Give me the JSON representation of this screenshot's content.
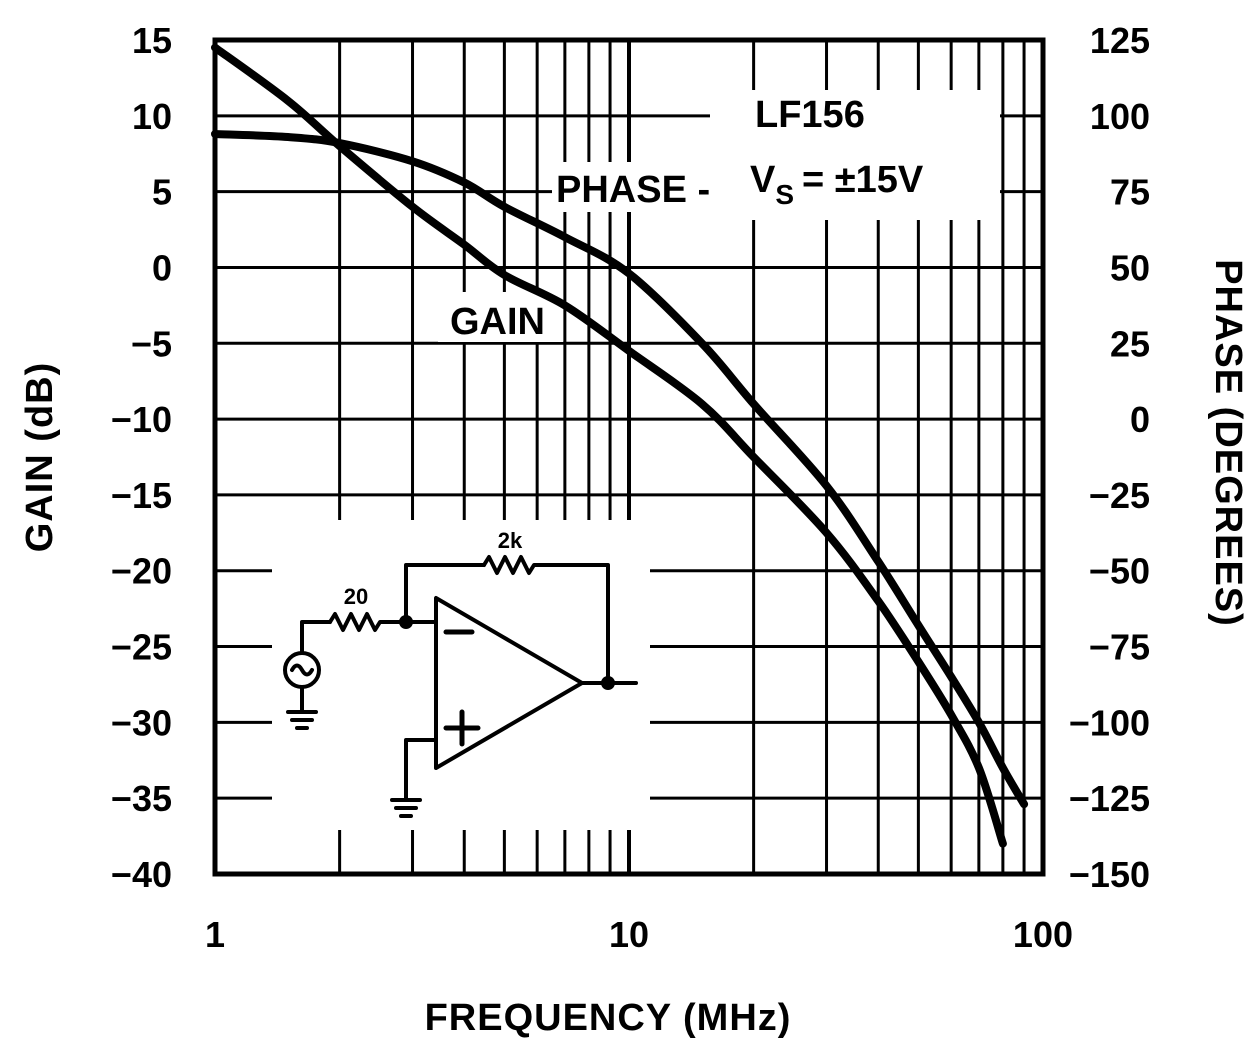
{
  "chart_data": {
    "type": "line",
    "xlabel": "FREQUENCY (MHz)",
    "ylabel": "GAIN (dB)",
    "y2label": "PHASE (DEGREES)",
    "x_scale": "log",
    "xlim": [
      1,
      100
    ],
    "ylim": [
      -40,
      15
    ],
    "y2lim": [
      -150,
      125
    ],
    "grid": true,
    "x_ticks": [
      "1",
      "10",
      "100"
    ],
    "y_ticks": [
      "15",
      "10",
      "5",
      "0",
      "−5",
      "−10",
      "−15",
      "−20",
      "−25",
      "−30",
      "−35",
      "−40"
    ],
    "y2_ticks": [
      "125",
      "100",
      "75",
      "50",
      "25",
      "0",
      "−25",
      "−50",
      "−75",
      "−100",
      "−125",
      "−150"
    ],
    "annotations": {
      "device": "LF156",
      "supply_prefix": "V",
      "supply_sub": "S",
      "supply_value": "= ±15V",
      "phase_label": "PHASE -",
      "gain_label": "GAIN"
    },
    "circuit": {
      "feedback_resistor": "2k",
      "input_resistor": "20"
    },
    "series": [
      {
        "name": "GAIN",
        "axis": "left",
        "x": [
          1,
          1.5,
          2,
          3,
          4,
          5,
          7,
          10,
          15,
          20,
          30,
          40,
          50,
          60,
          70,
          80
        ],
        "y": [
          14.5,
          11,
          8,
          4,
          1.5,
          -0.5,
          -2.5,
          -5.5,
          -9,
          -12.5,
          -17.5,
          -22,
          -26,
          -29.5,
          -33,
          -38
        ]
      },
      {
        "name": "PHASE",
        "axis": "right",
        "x": [
          1,
          1.5,
          2,
          3,
          4,
          5,
          7,
          10,
          15,
          20,
          30,
          40,
          50,
          60,
          70,
          80,
          90
        ],
        "y": [
          94,
          93,
          91,
          85,
          78,
          70,
          60,
          48,
          25,
          5,
          -22,
          -47,
          -68,
          -85,
          -100,
          -115,
          -127
        ]
      }
    ]
  }
}
